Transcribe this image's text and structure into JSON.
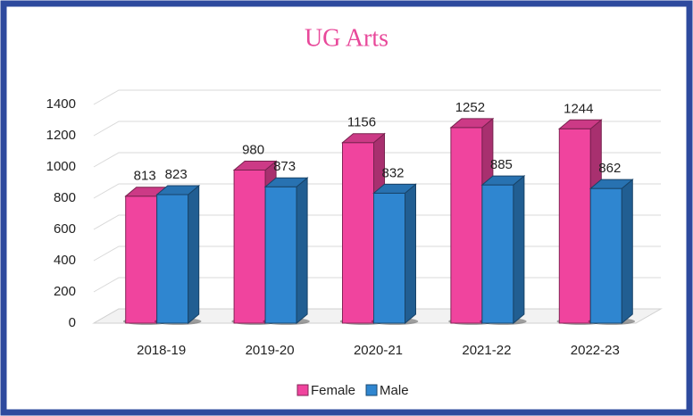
{
  "chart_data": {
    "type": "bar",
    "title": "UG Arts",
    "categories": [
      "2018-19",
      "2019-20",
      "2020-21",
      "2021-22",
      "2022-23"
    ],
    "series": [
      {
        "name": "Female",
        "color": "#f0449e",
        "values": [
          813,
          980,
          1156,
          1252,
          1244
        ]
      },
      {
        "name": "Male",
        "color": "#2f86d0",
        "values": [
          823,
          873,
          832,
          885,
          862
        ]
      }
    ],
    "ylim": [
      0,
      1400
    ],
    "yticks": [
      0,
      200,
      400,
      600,
      800,
      1000,
      1200,
      1400
    ],
    "grid": true,
    "legend": "bottom"
  }
}
